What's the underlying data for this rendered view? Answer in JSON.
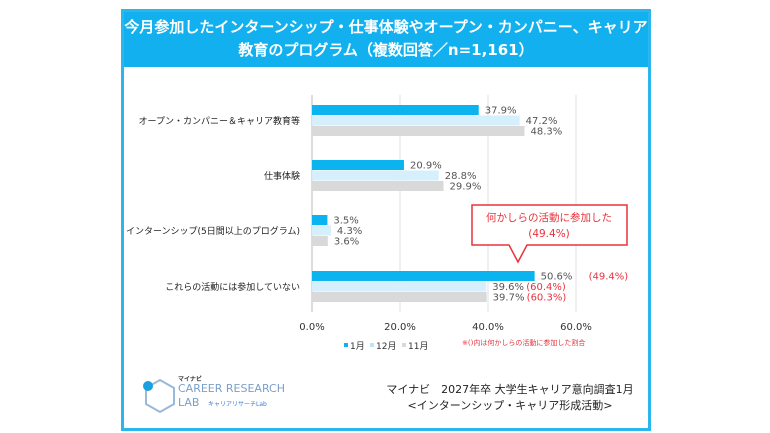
{
  "header": {
    "title_line1": "今月参加したインターンシップ・仕事体験やオープン・カンパニー、キャリア",
    "title_line2": "教育のプログラム（複数回答／n=1,161）"
  },
  "chart_data": {
    "type": "bar",
    "orientation": "horizontal",
    "categories": [
      "オープン・カンパニー＆キャリア教育等",
      "仕事体験",
      "インターンシップ(5日間以上のプログラム)",
      "これらの活動には参加していない"
    ],
    "series": [
      {
        "name": "1月",
        "color": "#0bb4ef",
        "values": [
          37.9,
          20.9,
          3.5,
          50.6
        ],
        "extra_labels": [
          null,
          null,
          null,
          "(49.4%)"
        ]
      },
      {
        "name": "12月",
        "color": "#d6effc",
        "values": [
          47.2,
          28.8,
          4.3,
          39.6
        ],
        "extra_labels": [
          null,
          null,
          null,
          "(60.4%)"
        ]
      },
      {
        "name": "11月",
        "color": "#d9d9d9",
        "values": [
          48.3,
          29.9,
          3.6,
          39.7
        ],
        "extra_labels": [
          null,
          null,
          null,
          "(60.3%)"
        ]
      }
    ],
    "xlim": [
      0,
      60
    ],
    "xticks": [
      "0.0%",
      "20.0%",
      "40.0%",
      "60.0%"
    ],
    "grid": true,
    "legend_placement": "bottom",
    "callout": {
      "line1": "何かしらの活動に参加した",
      "line2": "(49.4%)",
      "color": "#e8323c"
    },
    "note": "※()内は何かしらの活動に参加した割合"
  },
  "footer": {
    "line1": "マイナビ　2027年卒 大学生キャリア意向調査1月",
    "line2": "<インターンシップ・キャリア形成活動>"
  },
  "logo": {
    "top": "マイナビ",
    "name1": "CAREER RESEARCH",
    "name2": "LAB",
    "sub": "キャリアリサーチLab"
  }
}
